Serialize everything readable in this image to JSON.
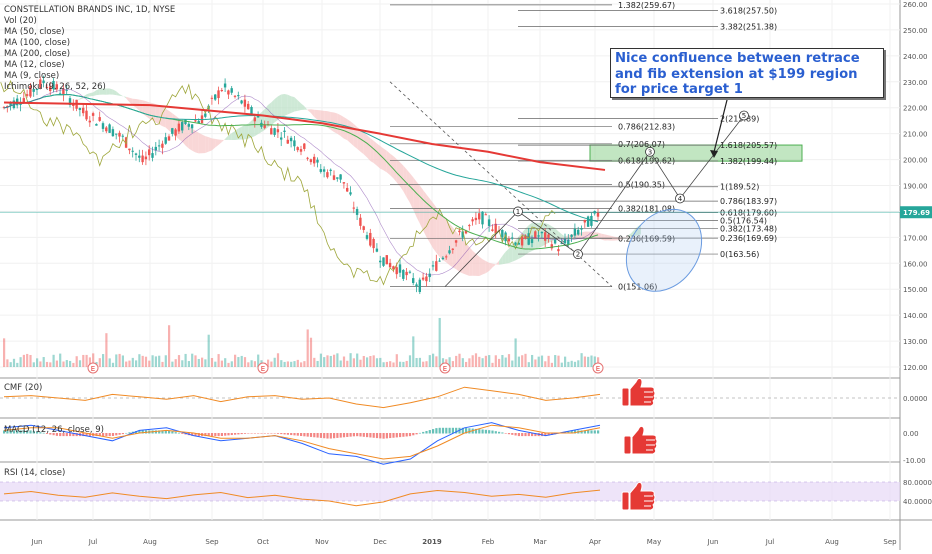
{
  "legend": {
    "symbol": "CONSTELLATION BRANDS INC, 1D, NYSE",
    "lines": [
      "Vol (20)",
      "MA (50, close)",
      "MA (100, close)",
      "MA (200, close)",
      "MA (12, close)",
      "MA (9, close)",
      "Ichimoku (9, 26, 52, 26)"
    ]
  },
  "annotation": "Nice confluence between retrace and fib extension at $199 region for price target 1",
  "colors": {
    "up": "#26a69a",
    "down": "#ef5350",
    "ma200": "#e53935",
    "cloud_green": "#b9dfc4",
    "cloud_red": "#f7c6c6",
    "target_zone": "#8fd18f",
    "rsi_band": "#e7d8f7",
    "cmf": "#f08a24",
    "macd": "#2962ff",
    "signal": "#f08a24",
    "thumb": "#e53935"
  },
  "panes": {
    "cmf_label": "CMF (20)",
    "macd_label": "MACD (12, 26, close, 9)",
    "rsi_label": "RSI (14, close)"
  },
  "chart_data": [
    {
      "type": "candlestick",
      "title": "CONSTELLATION BRANDS INC, 1D, NYSE",
      "y_ticks": [
        "260.00",
        "250.00",
        "240.00",
        "230.00",
        "220.00",
        "210.00",
        "200.00",
        "190.00",
        "180.00",
        "170.00",
        "160.00",
        "150.00",
        "140.00",
        "130.00",
        "120.00"
      ],
      "ylim": [
        115,
        262
      ],
      "x_ticks": [
        "Jun",
        "Jul",
        "Aug",
        "Sep",
        "Oct",
        "Nov",
        "Dec",
        "2019",
        "Feb",
        "Mar",
        "Apr",
        "May",
        "Jun",
        "Jul",
        "Aug",
        "Sep"
      ],
      "last_price": "179.69",
      "price_path": [
        [
          "Jun",
          220
        ],
        [
          "Jun",
          224
        ],
        [
          "Jun",
          230
        ],
        [
          "Jul",
          226
        ],
        [
          "Jul",
          218
        ],
        [
          "Aug",
          214
        ],
        [
          "Aug",
          208
        ],
        [
          "Aug",
          199
        ],
        [
          "Sep",
          207
        ],
        [
          "Sep",
          213
        ],
        [
          "Sep",
          216
        ],
        [
          "Oct",
          228
        ],
        [
          "Oct",
          222
        ],
        [
          "Oct",
          214
        ],
        [
          "Nov",
          210
        ],
        [
          "Nov",
          205
        ],
        [
          "Nov",
          196
        ],
        [
          "Dec",
          193
        ],
        [
          "Dec",
          175
        ],
        [
          "Dec",
          162
        ],
        [
          "2019",
          157
        ],
        [
          "2019",
          151
        ],
        [
          "2019",
          162
        ],
        [
          "Feb",
          171
        ],
        [
          "Feb",
          178
        ],
        [
          "Feb",
          172
        ],
        [
          "Mar",
          168
        ],
        [
          "Mar",
          171
        ],
        [
          "Mar",
          166
        ],
        [
          "Apr",
          173
        ],
        [
          "Apr",
          179.7
        ]
      ],
      "ma200": [
        [
          "Jun",
          222
        ],
        [
          "Aug",
          221
        ],
        [
          "Oct",
          217
        ],
        [
          "Nov",
          214
        ],
        [
          "Dec",
          210
        ],
        [
          "2019",
          206
        ],
        [
          "Feb",
          203
        ],
        [
          "Mar",
          199
        ],
        [
          "Apr",
          196
        ]
      ],
      "fib_retracement": [
        {
          "label": "1.382(259.67)",
          "value": 259.67
        },
        {
          "label": "0.786(212.83)",
          "value": 212.83
        },
        {
          "label": "0.7(206.07)",
          "value": 206.07
        },
        {
          "label": "0.618(199.62)",
          "value": 199.62
        },
        {
          "label": "0.5(190.35)",
          "value": 190.35
        },
        {
          "label": "0.382(181.08)",
          "value": 181.08
        },
        {
          "label": "0.236(169.59)",
          "value": 169.59
        },
        {
          "label": "0(151.06)",
          "value": 151.06
        }
      ],
      "fib_extension": [
        {
          "label": "3.618(257.50)",
          "value": 257.5
        },
        {
          "label": "3.382(251.38)",
          "value": 251.38
        },
        {
          "label": "2(215.89)",
          "value": 215.89
        },
        {
          "label": "1.618(205.57)",
          "value": 205.57
        },
        {
          "label": "1.382(199.44)",
          "value": 199.44
        },
        {
          "label": "1(189.52)",
          "value": 189.52
        },
        {
          "label": "0.786(183.97)",
          "value": 183.97
        },
        {
          "label": "0.618(179.60)",
          "value": 179.6
        },
        {
          "label": "0.5(176.54)",
          "value": 176.54
        },
        {
          "label": "0.382(173.48)",
          "value": 173.48
        },
        {
          "label": "0.236(169.69)",
          "value": 169.69
        },
        {
          "label": "0(163.56)",
          "value": 163.56
        }
      ],
      "target_zone": [
        199.4,
        205.6
      ],
      "wave_labels": [
        {
          "label": "1",
          "date": "Feb",
          "value": 180
        },
        {
          "label": "2",
          "date": "Mar",
          "value": 163.5
        },
        {
          "label": "3",
          "date": "Apr",
          "value": 203
        },
        {
          "label": "4",
          "date": "May",
          "value": 185
        },
        {
          "label": "5",
          "date": "May",
          "value": 217
        }
      ],
      "earnings_markers": [
        "E",
        "E",
        "E",
        "E"
      ]
    },
    {
      "type": "line",
      "title": "CMF (20)",
      "y_ticks": [
        "0.0000"
      ],
      "series": [
        {
          "name": "CMF (20)",
          "values": [
            0.01,
            0.02,
            0.0,
            -0.02,
            0.03,
            0.01,
            -0.01,
            0.02,
            -0.03,
            0.01,
            0.02,
            -0.01,
            0.0,
            -0.05,
            -0.08,
            -0.04,
            0.01,
            0.09,
            0.06,
            0.03,
            -0.02,
            0.0,
            0.03
          ]
        }
      ]
    },
    {
      "type": "line",
      "title": "MACD (12, 26, close, 9)",
      "y_ticks": [
        "0.00",
        "-10.00"
      ],
      "series": [
        {
          "name": "MACD",
          "values": [
            2,
            3,
            1,
            -1,
            -3,
            1,
            2,
            -1,
            -3,
            -2,
            -1,
            -4,
            -8,
            -9,
            -12,
            -10,
            -3,
            2,
            4,
            1,
            -1,
            1,
            3
          ]
        },
        {
          "name": "Signal",
          "values": [
            1,
            2,
            2,
            0,
            -2,
            0,
            1,
            0,
            -2,
            -2,
            -1,
            -3,
            -6,
            -8,
            -10,
            -9,
            -5,
            0,
            3,
            2,
            0,
            0,
            2
          ]
        }
      ]
    },
    {
      "type": "line",
      "title": "RSI (14, close)",
      "y_ticks": [
        "80.0000",
        "40.0000"
      ],
      "series": [
        {
          "name": "RSI",
          "values": [
            55,
            60,
            52,
            48,
            57,
            50,
            45,
            53,
            58,
            47,
            52,
            44,
            40,
            30,
            38,
            55,
            62,
            58,
            50,
            54,
            48,
            57,
            63
          ]
        }
      ]
    }
  ]
}
